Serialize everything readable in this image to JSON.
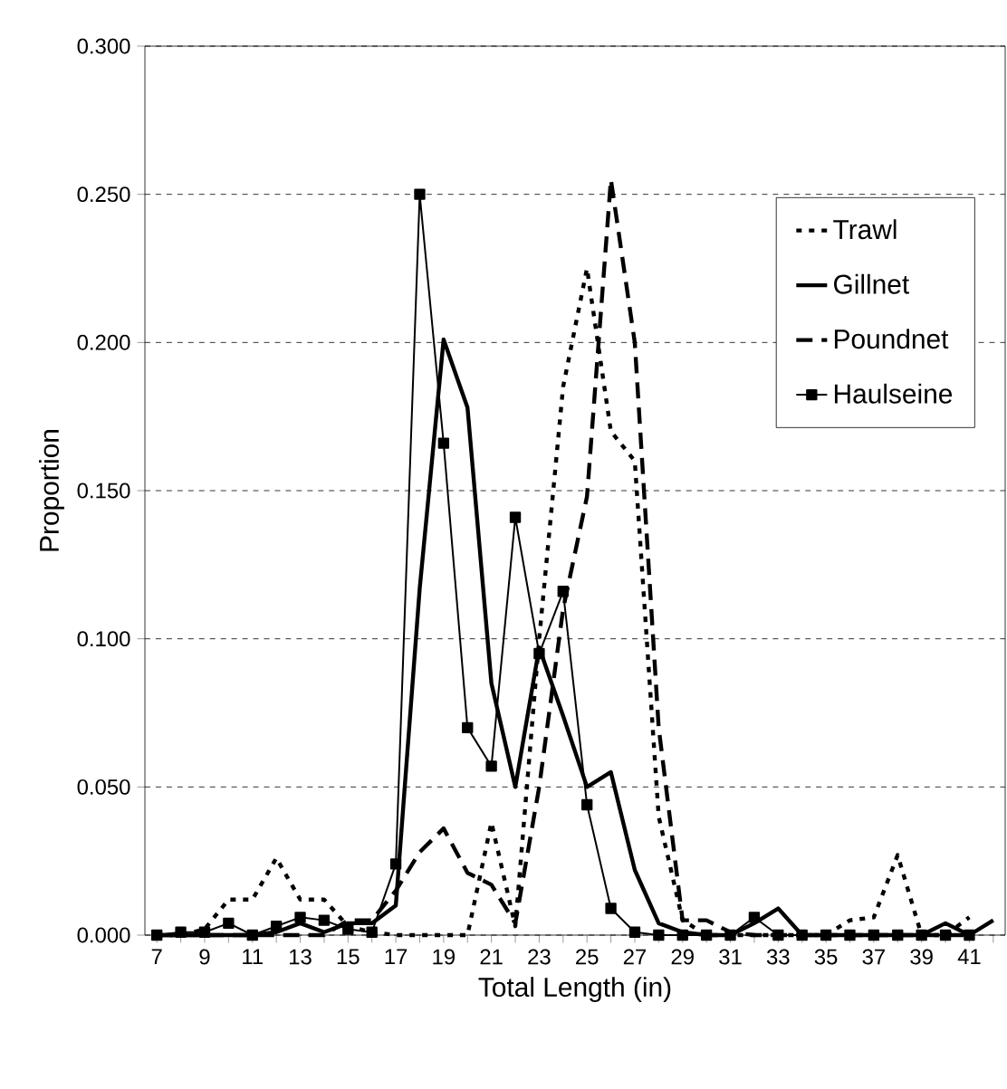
{
  "chart_data": {
    "type": "line",
    "xlabel": "Total Length (in)",
    "ylabel": "Proportion",
    "categories": [
      "7",
      null,
      "9",
      null,
      "11",
      null,
      "13",
      null,
      "15",
      null,
      "17",
      null,
      "19",
      null,
      "21",
      null,
      "23",
      null,
      "25",
      null,
      "27",
      null,
      "29",
      null,
      "31",
      null,
      "33",
      null,
      "35",
      null,
      "37",
      null,
      "39",
      null,
      "41",
      null
    ],
    "series": [
      {
        "name": "Trawl",
        "color": "#000000",
        "line_style": "dotted",
        "marker": "none",
        "values": [
          0,
          0,
          0.002,
          0.012,
          0.012,
          0.026,
          0.012,
          0.012,
          0.003,
          0.001,
          0,
          0,
          0,
          0,
          0.038,
          0.003,
          0.1,
          0.185,
          0.225,
          0.17,
          0.16,
          0.04,
          0.005,
          0,
          0,
          0,
          0,
          0,
          0,
          0.005,
          0.006,
          0.027,
          0,
          0,
          0.006,
          null
        ]
      },
      {
        "name": "Gillnet",
        "color": "#000000",
        "line_style": "solid",
        "marker": "none",
        "values": [
          0,
          0,
          0,
          0,
          0,
          0.001,
          0.004,
          0.001,
          0.004,
          0.004,
          0.01,
          0.117,
          0.201,
          0.178,
          0.085,
          0.05,
          0.097,
          0.074,
          0.05,
          0.055,
          0.022,
          0.004,
          0.001,
          0,
          0,
          0.004,
          0.009,
          0,
          0,
          0,
          0,
          0,
          0,
          0.004,
          0,
          0.005
        ]
      },
      {
        "name": "Poundnet",
        "color": "#000000",
        "line_style": "dashed",
        "marker": "none",
        "values": [
          0,
          0,
          0,
          0,
          0,
          0,
          0,
          0,
          0.005,
          0.005,
          0.015,
          0.028,
          0.036,
          0.021,
          0.017,
          0.004,
          0.05,
          0.11,
          0.148,
          0.255,
          0.2,
          0.07,
          0.005,
          0.005,
          0.001,
          0,
          0,
          0,
          0,
          0,
          0,
          0,
          0,
          0,
          0,
          null
        ]
      },
      {
        "name": "Haulseine",
        "color": "#000000",
        "line_style": "solid",
        "marker": "square",
        "values": [
          0,
          0.001,
          0.001,
          0.004,
          0,
          0.003,
          0.006,
          0.005,
          0.002,
          0.001,
          0.024,
          0.25,
          0.166,
          0.07,
          0.057,
          0.141,
          0.095,
          0.116,
          0.044,
          0.009,
          0.001,
          0,
          0,
          0,
          0,
          0.006,
          0,
          0,
          0,
          0,
          0,
          0,
          0,
          0,
          0,
          null
        ]
      }
    ],
    "ylim": [
      0,
      0.3
    ],
    "yticks": [
      {
        "value": 0,
        "label": "0.000"
      },
      {
        "value": 0.05,
        "label": "0.050"
      },
      {
        "value": 0.1,
        "label": "0.100"
      },
      {
        "value": 0.15,
        "label": "0.150"
      },
      {
        "value": 0.2,
        "label": "0.200"
      },
      {
        "value": 0.25,
        "label": "0.250"
      },
      {
        "value": 0.3,
        "label": "0.300"
      }
    ],
    "grid": "y",
    "legend": "top right"
  }
}
